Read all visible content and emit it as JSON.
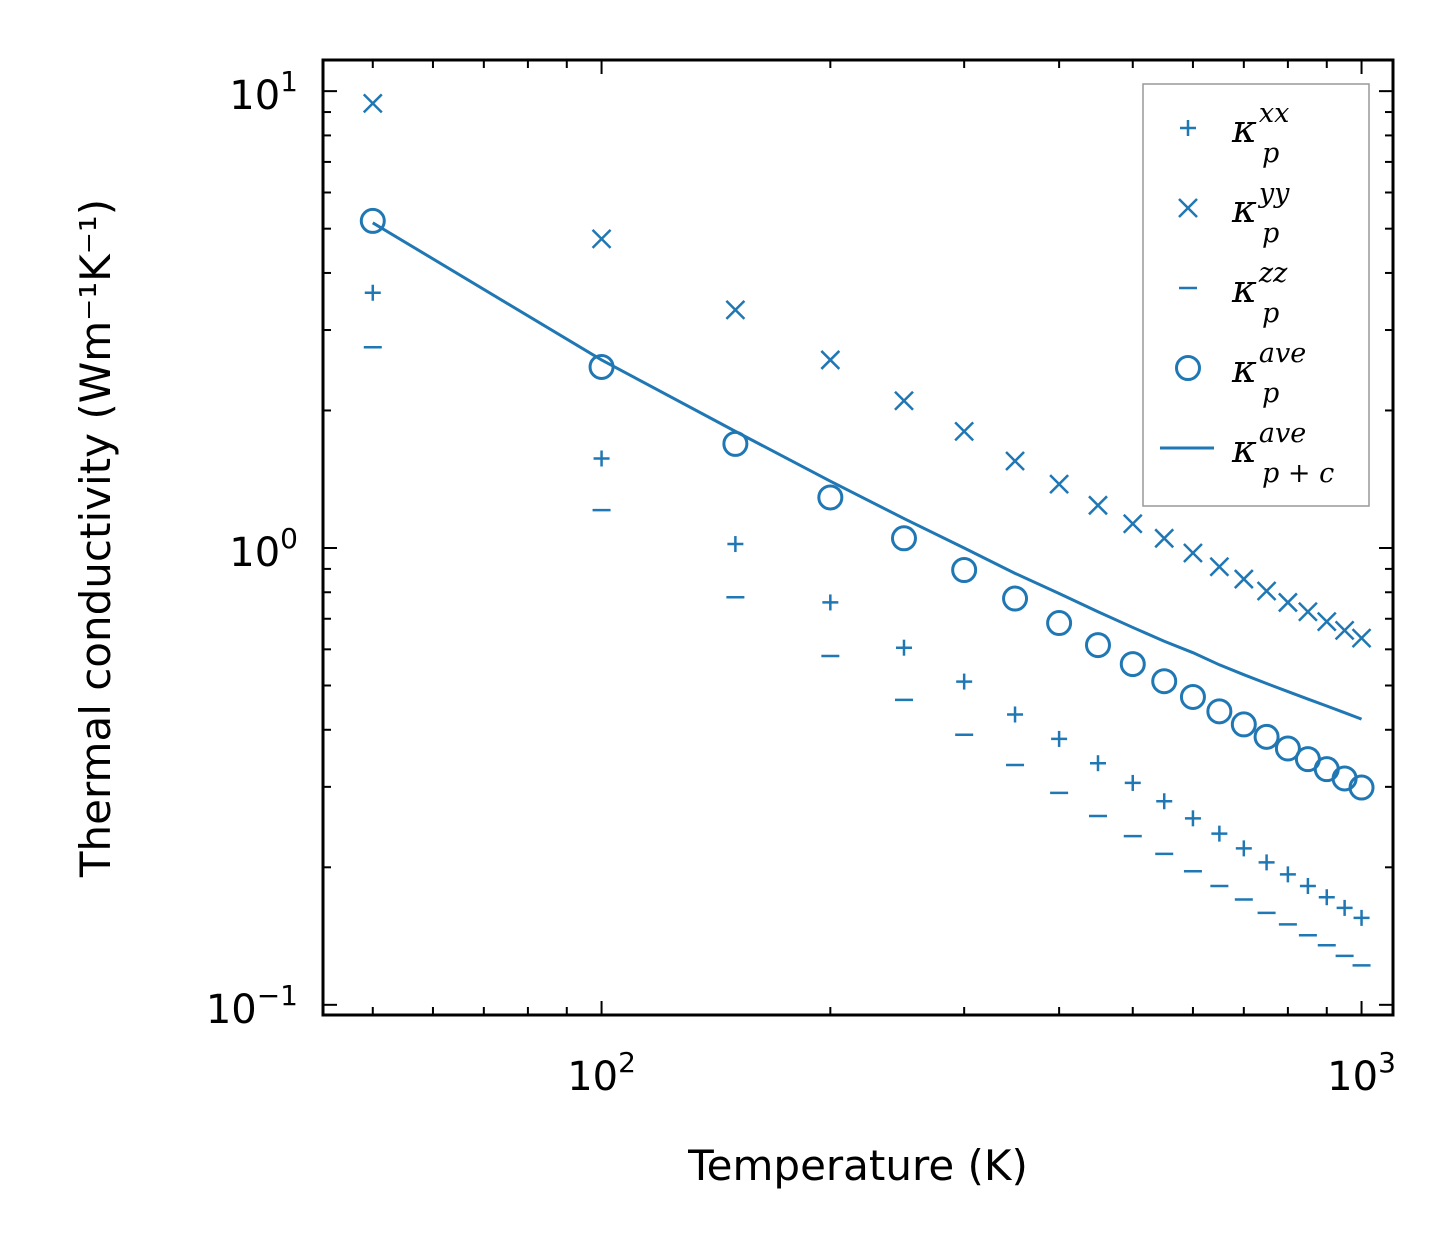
{
  "chart_data": {
    "type": "scatter",
    "xscale": "log",
    "yscale": "log",
    "xlim": [
      43,
      1100
    ],
    "ylim": [
      0.095,
      11.7
    ],
    "xlabel": "Temperature (K)",
    "ylabel": "Thermal conductivity (Wm⁻¹K⁻¹)",
    "x_ticks": [
      {
        "value": 100,
        "base": "10",
        "exp": "2"
      },
      {
        "value": 1000,
        "base": "10",
        "exp": "3"
      }
    ],
    "y_ticks": [
      {
        "value": 0.1,
        "base": "10",
        "exp": "−1"
      },
      {
        "value": 1,
        "base": "10",
        "exp": "0"
      },
      {
        "value": 10,
        "base": "10",
        "exp": "1"
      }
    ],
    "color": "#1f77b4",
    "x": [
      50,
      100,
      150,
      200,
      250,
      300,
      350,
      400,
      450,
      500,
      550,
      600,
      650,
      700,
      750,
      800,
      850,
      900,
      950,
      1000
    ],
    "series": [
      {
        "name": "kappa_p_xx",
        "marker": "plus",
        "symbol": "κ",
        "sub": "p",
        "sup": "xx",
        "values": [
          3.62,
          1.57,
          1.02,
          0.76,
          0.605,
          0.51,
          0.432,
          0.382,
          0.338,
          0.306,
          0.279,
          0.256,
          0.237,
          0.22,
          0.205,
          0.193,
          0.182,
          0.172,
          0.163,
          0.155
        ]
      },
      {
        "name": "kappa_p_yy",
        "marker": "x",
        "symbol": "κ",
        "sub": "p",
        "sup": "yy",
        "values": [
          9.4,
          4.75,
          3.32,
          2.58,
          2.1,
          1.8,
          1.55,
          1.38,
          1.24,
          1.13,
          1.05,
          0.975,
          0.91,
          0.855,
          0.805,
          0.76,
          0.725,
          0.69,
          0.66,
          0.635
        ]
      },
      {
        "name": "kappa_p_zz",
        "marker": "minus",
        "symbol": "κ",
        "sub": "p",
        "sup": "zz",
        "values": [
          2.75,
          1.21,
          0.78,
          0.58,
          0.465,
          0.39,
          0.335,
          0.291,
          0.259,
          0.234,
          0.214,
          0.196,
          0.182,
          0.17,
          0.159,
          0.15,
          0.142,
          0.135,
          0.128,
          0.122
        ]
      },
      {
        "name": "kappa_p_ave",
        "marker": "circle",
        "symbol": "κ",
        "sub": "p",
        "sup": "ave",
        "values": [
          5.2,
          2.49,
          1.69,
          1.29,
          1.05,
          0.895,
          0.775,
          0.685,
          0.613,
          0.557,
          0.511,
          0.472,
          0.439,
          0.411,
          0.386,
          0.364,
          0.345,
          0.328,
          0.313,
          0.299
        ]
      },
      {
        "name": "kappa_p_plus_c_ave",
        "marker": "line",
        "symbol": "κ",
        "sub": "p + c",
        "sup": "ave",
        "values": [
          5.15,
          2.58,
          1.8,
          1.4,
          1.16,
          1.0,
          0.88,
          0.795,
          0.725,
          0.67,
          0.625,
          0.59,
          0.555,
          0.528,
          0.505,
          0.485,
          0.467,
          0.451,
          0.436,
          0.422
        ]
      }
    ],
    "legend": "top-right"
  }
}
